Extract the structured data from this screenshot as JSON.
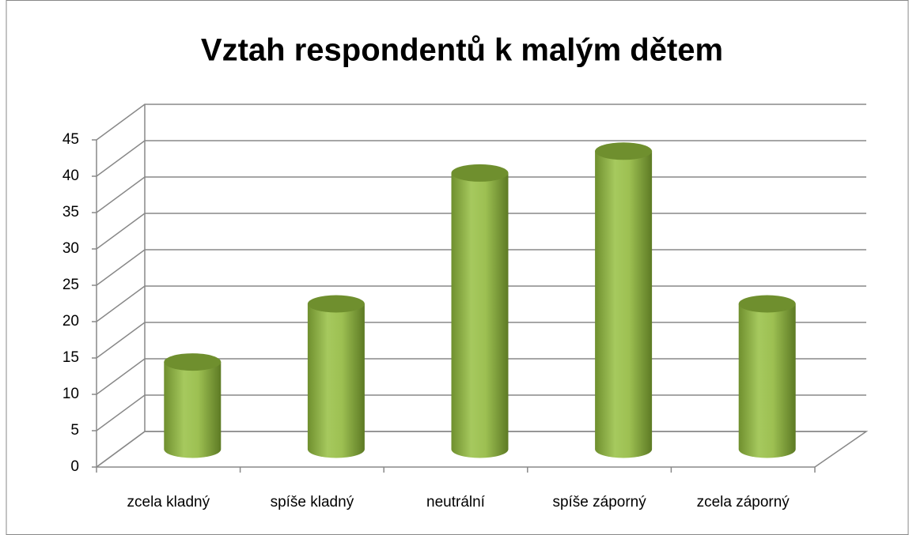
{
  "chart_data": {
    "type": "bar3d",
    "title": "Vztah respondentů k malým dětem",
    "categories": [
      "zcela kladný",
      "spíše kladný",
      "neutrální",
      "spíše záporný",
      "zcela záporný"
    ],
    "values": [
      12,
      20,
      38,
      41,
      20
    ],
    "color": "#8db048",
    "ylim": [
      0,
      45
    ],
    "yticks": [
      0,
      5,
      10,
      15,
      20,
      25,
      30,
      35,
      40,
      45
    ],
    "grid": true
  }
}
